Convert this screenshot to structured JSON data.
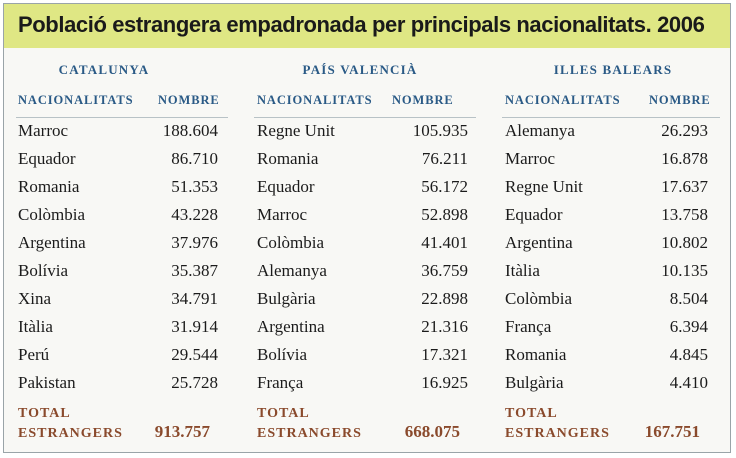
{
  "title": "Població estrangera empadronada per principals nacionalitats. 2006",
  "colors": {
    "title_bg": "#dfe784",
    "header": "#2a5a86",
    "total": "#8a4a2c"
  },
  "sections": [
    {
      "region": "CATALUNYA",
      "col_nationality": "NACIONALITATS",
      "col_number": "NOMBRE",
      "rows": [
        {
          "name": "Marroc",
          "value": "188.604"
        },
        {
          "name": "Equador",
          "value": "86.710"
        },
        {
          "name": "Romania",
          "value": "51.353"
        },
        {
          "name": "Colòmbia",
          "value": "43.228"
        },
        {
          "name": "Argentina",
          "value": "37.976"
        },
        {
          "name": "Bolívia",
          "value": "35.387"
        },
        {
          "name": "Xina",
          "value": "34.791"
        },
        {
          "name": "Itàlia",
          "value": "31.914"
        },
        {
          "name": "Perú",
          "value": "29.544"
        },
        {
          "name": "Pakistan",
          "value": "25.728"
        }
      ],
      "total_label_1": "TOTAL",
      "total_label_2": "ESTRANGERS",
      "total_value": "913.757"
    },
    {
      "region": "PAÍS VALENCIÀ",
      "col_nationality": "NACIONALITATS",
      "col_number": "NOMBRE",
      "rows": [
        {
          "name": "Regne Unit",
          "value": "105.935"
        },
        {
          "name": "Romania",
          "value": "76.211"
        },
        {
          "name": "Equador",
          "value": "56.172"
        },
        {
          "name": "Marroc",
          "value": "52.898"
        },
        {
          "name": "Colòmbia",
          "value": "41.401"
        },
        {
          "name": "Alemanya",
          "value": "36.759"
        },
        {
          "name": "Bulgària",
          "value": "22.898"
        },
        {
          "name": "Argentina",
          "value": "21.316"
        },
        {
          "name": "Bolívia",
          "value": "17.321"
        },
        {
          "name": "França",
          "value": "16.925"
        }
      ],
      "total_label_1": "TOTAL",
      "total_label_2": "ESTRANGERS",
      "total_value": "668.075"
    },
    {
      "region": "ILLES BALEARS",
      "col_nationality": "NACIONALITATS",
      "col_number": "NOMBRE",
      "rows": [
        {
          "name": "Alemanya",
          "value": "26.293"
        },
        {
          "name": "Marroc",
          "value": "16.878"
        },
        {
          "name": "Regne Unit",
          "value": "17.637"
        },
        {
          "name": "Equador",
          "value": "13.758"
        },
        {
          "name": "Argentina",
          "value": "10.802"
        },
        {
          "name": "Itàlia",
          "value": "10.135"
        },
        {
          "name": "Colòmbia",
          "value": "8.504"
        },
        {
          "name": "França",
          "value": "6.394"
        },
        {
          "name": "Romania",
          "value": "4.845"
        },
        {
          "name": "Bulgària",
          "value": "4.410"
        }
      ],
      "total_label_1": "TOTAL",
      "total_label_2": "ESTRANGERS",
      "total_value": "167.751"
    }
  ]
}
